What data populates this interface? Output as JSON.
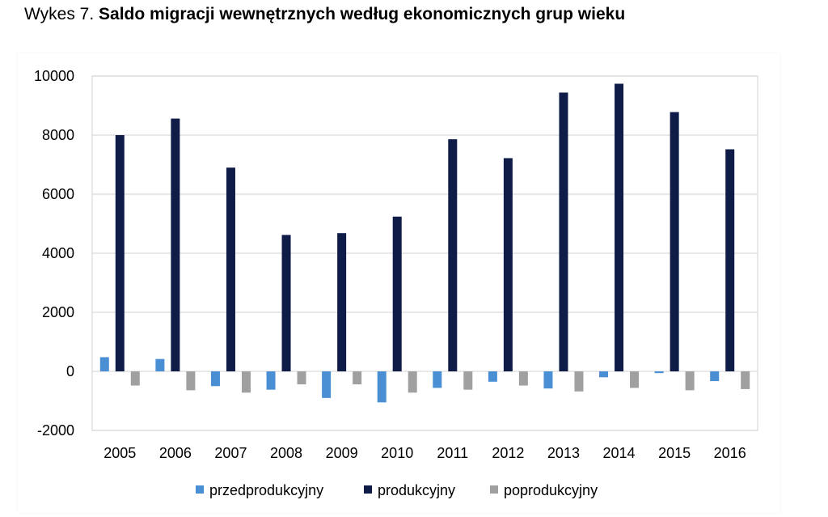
{
  "figure": {
    "prefix": "Wykes 7.",
    "title": "Saldo migracji wewnętrznych według ekonomicznych grup wieku"
  },
  "chart_data": {
    "type": "bar",
    "title": "Saldo migracji wewnętrznych według ekonomicznych grup wieku",
    "xlabel": "",
    "ylabel": "",
    "ylim": [
      -2000,
      10000
    ],
    "yticks": [
      "-2000",
      "0",
      "2000",
      "4000",
      "6000",
      "8000",
      "10000"
    ],
    "grid": true,
    "legend_position": "bottom",
    "categories": [
      "2005",
      "2006",
      "2007",
      "2008",
      "2009",
      "2010",
      "2011",
      "2012",
      "2013",
      "2014",
      "2015",
      "2016"
    ],
    "series": [
      {
        "name": "przedprodukcyjny",
        "color": "#4a8fd4",
        "values": [
          480,
          420,
          -500,
          -620,
          -900,
          -1050,
          -560,
          -350,
          -580,
          -200,
          -60,
          -330
        ]
      },
      {
        "name": "produkcyjny",
        "color": "#0f1c47",
        "values": [
          8000,
          8560,
          6900,
          4620,
          4680,
          5240,
          7860,
          7220,
          9440,
          9740,
          8780,
          7520
        ]
      },
      {
        "name": "poprodukcyjny",
        "color": "#a0a0a0",
        "values": [
          -480,
          -640,
          -720,
          -440,
          -440,
          -720,
          -620,
          -480,
          -680,
          -560,
          -640,
          -600
        ]
      }
    ]
  }
}
